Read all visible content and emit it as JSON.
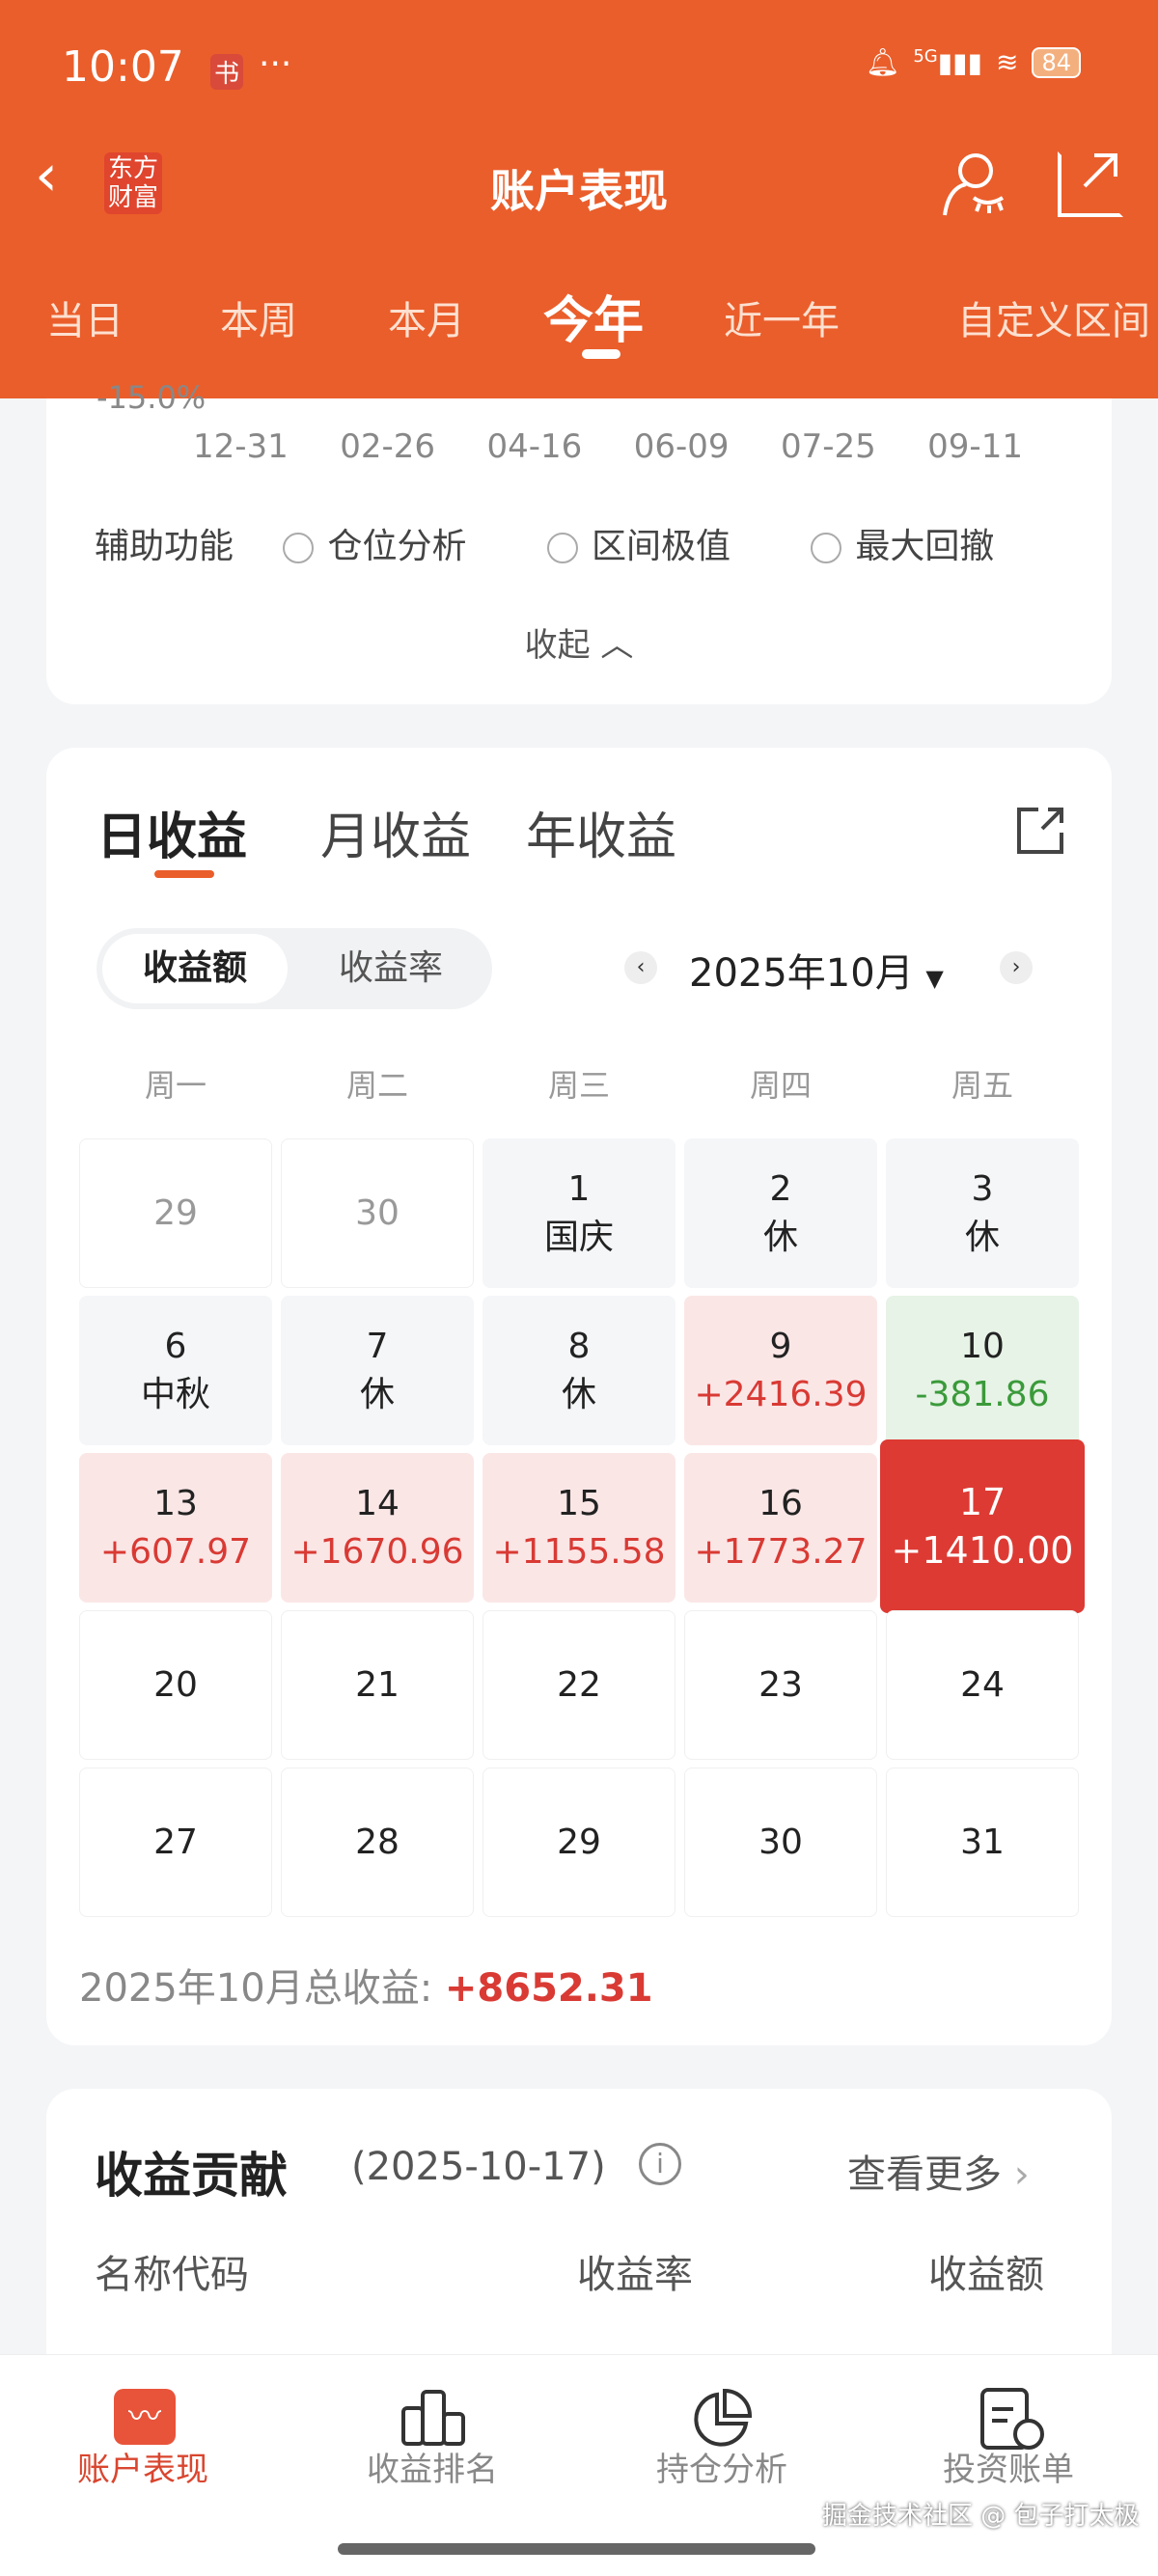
{
  "status_bar": {
    "time": "10:07",
    "app_badge": "书",
    "more": "···",
    "network": "5G",
    "battery": "84"
  },
  "header": {
    "logo": "东方财富",
    "title": "账户表现"
  },
  "period_tabs": [
    {
      "label": "当日"
    },
    {
      "label": "本周"
    },
    {
      "label": "本月"
    },
    {
      "label": "今年",
      "active": true
    },
    {
      "label": "近一年"
    },
    {
      "label": "自定义区间"
    }
  ],
  "chart_fragment": {
    "y_tick": "-15.0%",
    "x_ticks": [
      "12-31",
      "02-26",
      "04-16",
      "06-09",
      "07-25",
      "09-11"
    ]
  },
  "assist": {
    "label": "辅助功能",
    "options": [
      "仓位分析",
      "区间极值",
      "最大回撤"
    ],
    "collapse": "收起"
  },
  "earnings": {
    "tabs": [
      "日收益",
      "月收益",
      "年收益"
    ],
    "segment": [
      "收益额",
      "收益率"
    ],
    "month": "2025年10月",
    "weekdays": [
      "周一",
      "周二",
      "周三",
      "周四",
      "周五"
    ],
    "cells": [
      {
        "d": "29",
        "t": "prev"
      },
      {
        "d": "30",
        "t": "prev"
      },
      {
        "d": "1",
        "v": "国庆",
        "t": "holiday"
      },
      {
        "d": "2",
        "v": "休",
        "t": "holiday"
      },
      {
        "d": "3",
        "v": "休",
        "t": "holiday"
      },
      {
        "d": "6",
        "v": "中秋",
        "t": "holiday"
      },
      {
        "d": "7",
        "v": "休",
        "t": "holiday"
      },
      {
        "d": "8",
        "v": "休",
        "t": "holiday"
      },
      {
        "d": "9",
        "v": "+2416.39",
        "t": "gain"
      },
      {
        "d": "10",
        "v": "-381.86",
        "t": "loss"
      },
      {
        "d": "13",
        "v": "+607.97",
        "t": "gain"
      },
      {
        "d": "14",
        "v": "+1670.96",
        "t": "gain"
      },
      {
        "d": "15",
        "v": "+1155.58",
        "t": "gain"
      },
      {
        "d": "16",
        "v": "+1773.27",
        "t": "gain"
      },
      {
        "d": "17",
        "v": "+1410.00",
        "t": "selected"
      },
      {
        "d": "20",
        "t": "empty"
      },
      {
        "d": "21",
        "t": "empty"
      },
      {
        "d": "22",
        "t": "empty"
      },
      {
        "d": "23",
        "t": "empty"
      },
      {
        "d": "24",
        "t": "empty"
      },
      {
        "d": "27",
        "t": "empty"
      },
      {
        "d": "28",
        "t": "empty"
      },
      {
        "d": "29",
        "t": "empty"
      },
      {
        "d": "30",
        "t": "empty"
      },
      {
        "d": "31",
        "t": "empty"
      }
    ],
    "total_label": "2025年10月总收益:",
    "total_value": "+8652.31"
  },
  "contribution": {
    "title": "收益贡献",
    "date": "(2025-10-17)",
    "more": "查看更多",
    "columns": [
      "名称代码",
      "收益率",
      "收益额"
    ]
  },
  "bottom_nav": [
    {
      "label": "账户表现",
      "active": true
    },
    {
      "label": "收益排名"
    },
    {
      "label": "持仓分析"
    },
    {
      "label": "投资账单"
    }
  ],
  "watermark": "掘金技术社区 @ 包子打太极",
  "colors": {
    "brand": "#ea5e2b",
    "gain": "#d93a34",
    "loss": "#3a9a3a"
  }
}
